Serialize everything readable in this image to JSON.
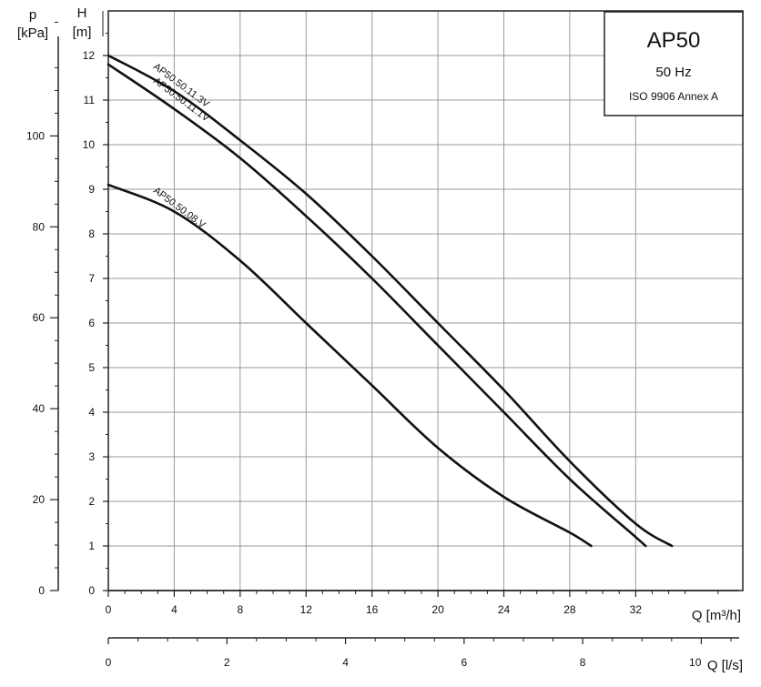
{
  "chart_data": {
    "type": "line",
    "title": "AP50",
    "subtitle": "50 Hz",
    "standard": "ISO 9906 Annex A",
    "axes": {
      "H": {
        "label": "H",
        "unit": "[m]",
        "range": [
          0,
          13
        ],
        "ticks": [
          0,
          1,
          2,
          3,
          4,
          5,
          6,
          7,
          8,
          9,
          10,
          11,
          12
        ]
      },
      "p": {
        "label": "p",
        "unit": "[kPa]",
        "range": [
          0,
          127.5
        ],
        "ticks": [
          0,
          20,
          40,
          60,
          80,
          100
        ]
      },
      "Q_m3h": {
        "label": "Q [m³/h]",
        "range": [
          0,
          38.5
        ],
        "ticks": [
          0,
          4,
          8,
          12,
          16,
          20,
          24,
          28,
          32
        ]
      },
      "Q_ls": {
        "label": "Q [l/s]",
        "range": [
          0,
          10.7
        ],
        "ticks": [
          0,
          2,
          4,
          6,
          8,
          10
        ]
      }
    },
    "grid": true,
    "series": [
      {
        "name": "AP50.50.11.3V",
        "x": [
          0,
          4,
          8,
          12,
          16,
          20,
          24,
          28,
          32,
          34.2
        ],
        "y": [
          12.0,
          11.2,
          10.1,
          8.9,
          7.5,
          6.0,
          4.5,
          2.9,
          1.5,
          1.0
        ]
      },
      {
        "name": "AP50.50.11.1V",
        "x": [
          0,
          4,
          8,
          12,
          16,
          20,
          24,
          28,
          32,
          32.6
        ],
        "y": [
          11.8,
          10.8,
          9.7,
          8.4,
          7.0,
          5.5,
          4.0,
          2.5,
          1.2,
          1.0
        ]
      },
      {
        "name": "AP50.50.08.V",
        "x": [
          0,
          4,
          8,
          12,
          16,
          20,
          24,
          28,
          29.3
        ],
        "y": [
          9.1,
          8.5,
          7.4,
          6.0,
          4.6,
          3.2,
          2.1,
          1.3,
          1.0
        ]
      }
    ]
  }
}
